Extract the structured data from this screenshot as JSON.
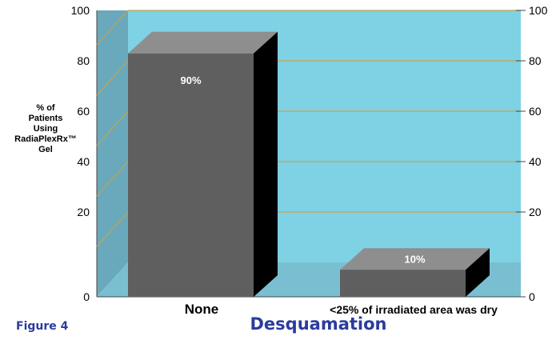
{
  "figure_label": "Figure 4",
  "chart_data": {
    "type": "bar",
    "title": "Desquamation",
    "ylabel_lines": [
      "% of",
      "Patients",
      "Using",
      "RadiaPlexRx™",
      "Gel"
    ],
    "categories": [
      "None",
      "<25% of irradiated area was dry"
    ],
    "values": [
      90,
      10
    ],
    "data_labels": [
      "90%",
      "10%"
    ],
    "ylim": [
      0,
      100
    ],
    "yticks": [
      0,
      20,
      40,
      60,
      80,
      100
    ],
    "grid": true,
    "three_d": true,
    "colors": {
      "back_wall": "#7fd1e4",
      "side_wall": "#6aa9bb",
      "floor": "#79bfd1",
      "gridline": "#c5a34f",
      "bar_front": "#5f5f5f",
      "bar_top": "#8e8e8e",
      "bar_side": "#000000",
      "title": "#2a3c9c"
    }
  }
}
